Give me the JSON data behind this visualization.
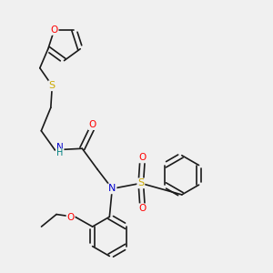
{
  "bg_color": "#f0f0f0",
  "bond_color": "#1a1a1a",
  "atom_colors": {
    "O": "#ff0000",
    "S": "#ccaa00",
    "N": "#0000cc",
    "H": "#008080",
    "C": "#1a1a1a"
  },
  "lw": 1.2,
  "fs": 7.5,
  "xlim": [
    0,
    10
  ],
  "ylim": [
    0,
    10
  ]
}
